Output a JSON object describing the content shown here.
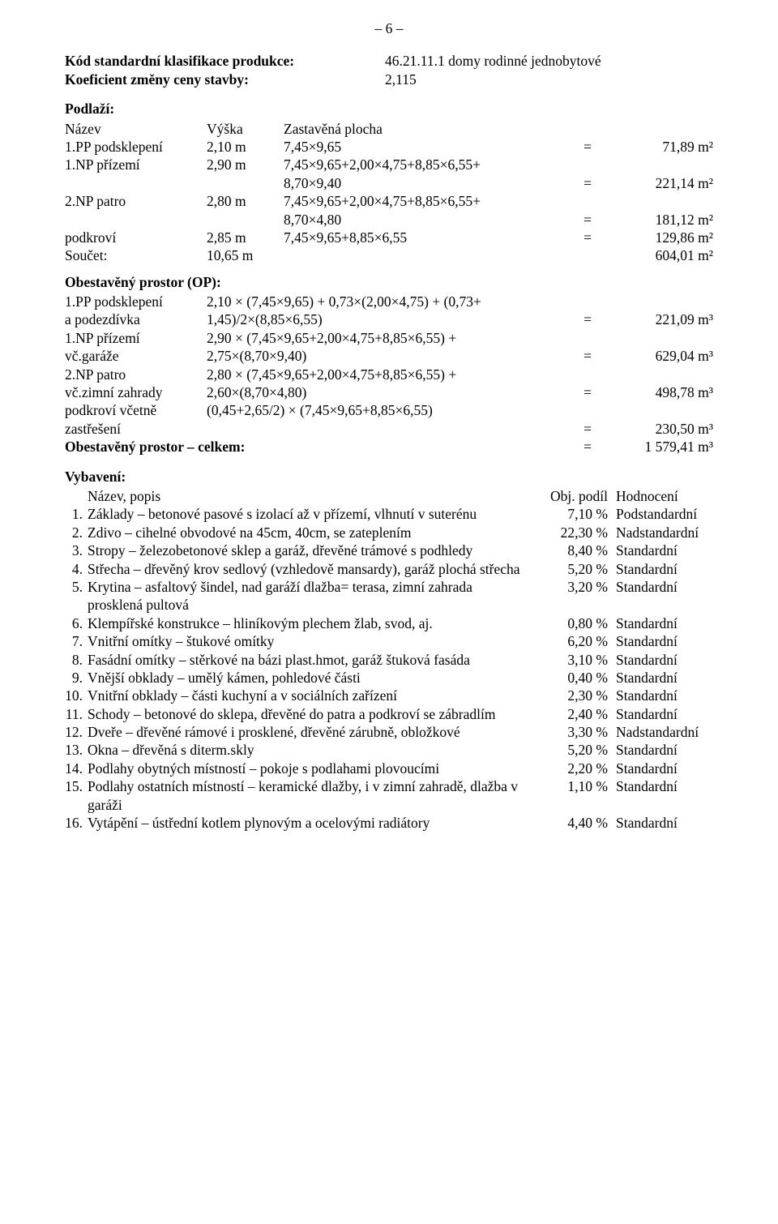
{
  "page_number": "– 6 –",
  "top": {
    "row1_label": "Kód standardní klasifikace produkce:",
    "row1_value": "46.21.11.1    domy rodinné jednobytové",
    "row2_label": "Koeficient změny ceny stavby:",
    "row2_value": "2,115"
  },
  "podlazi": {
    "title": "Podlaží:",
    "head_c1": "Název",
    "head_c2": "Výška",
    "head_c3": "Zastavěná plocha",
    "rows": [
      {
        "c1": "1.PP podsklepení",
        "c2": "2,10 m",
        "c3": "7,45×9,65",
        "c4": "=",
        "c5": "71,89 m²"
      },
      {
        "c1": "1.NP přízemí",
        "c2": "2,90 m",
        "c3": "7,45×9,65+2,00×4,75+8,85×6,55+",
        "c4": "",
        "c5": ""
      },
      {
        "c1": "",
        "c2": "",
        "c3": "8,70×9,40",
        "c4": "=",
        "c5": "221,14 m²"
      },
      {
        "c1": "2.NP patro",
        "c2": "2,80 m",
        "c3": "7,45×9,65+2,00×4,75+8,85×6,55+",
        "c4": "",
        "c5": ""
      },
      {
        "c1": "",
        "c2": "",
        "c3": "8,70×4,80",
        "c4": "=",
        "c5": "181,12 m²"
      },
      {
        "c1": "podkroví",
        "c2": "2,85 m",
        "c3": "7,45×9,65+8,85×6,55",
        "c4": "=",
        "c5": "129,86 m²"
      }
    ],
    "sum_row": {
      "c1": "Součet:",
      "c2": "10,65 m",
      "c3": "",
      "c4": "",
      "c5": "604,01 m²"
    }
  },
  "op": {
    "title": "Obestavěný prostor (OP):",
    "rows": [
      {
        "cL": "1.PP podsklepení",
        "cM": "2,10 × (7,45×9,65) + 0,73×(2,00×4,75) + (0,73+",
        "c4": "",
        "c5": ""
      },
      {
        "cL": "a podezdívka",
        "cM": "1,45)/2×(8,85×6,55)",
        "c4": "=",
        "c5": "221,09 m³"
      },
      {
        "cL": "1.NP přízemí",
        "cM": "2,90 × (7,45×9,65+2,00×4,75+8,85×6,55) +",
        "c4": "",
        "c5": ""
      },
      {
        "cL": "vč.garáže",
        "cM": "2,75×(8,70×9,40)",
        "c4": "=",
        "c5": "629,04 m³"
      },
      {
        "cL": "2.NP patro",
        "cM": "2,80 × (7,45×9,65+2,00×4,75+8,85×6,55) +",
        "c4": "",
        "c5": ""
      },
      {
        "cL": "vč.zimní zahrady",
        "cM": "2,60×(8,70×4,80)",
        "c4": "=",
        "c5": "498,78 m³"
      },
      {
        "cL": "podkroví včetně",
        "cM": "(0,45+2,65/2) × (7,45×9,65+8,85×6,55)",
        "c4": "",
        "c5": ""
      },
      {
        "cL": "zastřešení",
        "cM": "",
        "c4": "=",
        "c5": "230,50 m³"
      }
    ],
    "sum": {
      "cL": "Obestavěný prostor – celkem:",
      "c4": "=",
      "c5": "1 579,41 m³"
    }
  },
  "vyb": {
    "title": "Vybavení:",
    "head_c1": "Název, popis",
    "head_c2": "Obj. podíl",
    "head_c3": "Hodnocení",
    "rows": [
      {
        "n": "1.",
        "d": "Základy – betonové pasové s izolací až v přízemí, vlhnutí v suterénu",
        "p": "7,10 %",
        "r": "Podstandardní"
      },
      {
        "n": "2.",
        "d": "Zdivo – cihelné obvodové na 45cm, 40cm, se zateplením",
        "p": "22,30 %",
        "r": "Nadstandardní"
      },
      {
        "n": "3.",
        "d": "Stropy – železobetonové sklep a garáž, dřevěné trámové s podhledy",
        "p": "8,40 %",
        "r": "Standardní"
      },
      {
        "n": "4.",
        "d": "Střecha – dřevěný krov sedlový (vzhledově mansardy), garáž plochá střecha",
        "p": "5,20 %",
        "r": "Standardní"
      },
      {
        "n": "5.",
        "d": "Krytina – asfaltový šindel, nad garáží dlažba= terasa, zimní zahrada prosklená pultová",
        "p": "3,20 %",
        "r": "Standardní"
      },
      {
        "n": "6.",
        "d": "Klempířské konstrukce – hliníkovým plechem žlab, svod, aj.",
        "p": "0,80 %",
        "r": "Standardní"
      },
      {
        "n": "7.",
        "d": "Vnitřní omítky – štukové omítky",
        "p": "6,20 %",
        "r": "Standardní"
      },
      {
        "n": "8.",
        "d": "Fasádní omítky – stěrkové na bázi plast.hmot, garáž štuková fasáda",
        "p": "3,10 %",
        "r": "Standardní"
      },
      {
        "n": "9.",
        "d": "Vnější obklady – umělý kámen, pohledové části",
        "p": "0,40 %",
        "r": "Standardní"
      },
      {
        "n": "10.",
        "d": "Vnitřní obklady – části kuchyní a v sociálních zařízení",
        "p": "2,30 %",
        "r": "Standardní"
      },
      {
        "n": "11.",
        "d": "Schody – betonové do sklepa, dřevěné do patra a podkroví se zábradlím",
        "p": "2,40 %",
        "r": "Standardní"
      },
      {
        "n": "12.",
        "d": "Dveře – dřevěné rámové i prosklené, dřevěné zárubně, obložkové",
        "p": "3,30 %",
        "r": "Nadstandardní"
      },
      {
        "n": "13.",
        "d": "Okna – dřevěná s diterm.skly",
        "p": "5,20 %",
        "r": "Standardní"
      },
      {
        "n": "14.",
        "d": "Podlahy obytných místností – pokoje s podlahami plovoucími",
        "p": "2,20 %",
        "r": "Standardní"
      },
      {
        "n": "15.",
        "d": "Podlahy ostatních místností – keramické dlažby, i v zimní zahradě, dlažba v garáži",
        "p": "1,10 %",
        "r": "Standardní"
      },
      {
        "n": "16.",
        "d": "Vytápění – ústřední kotlem plynovým a ocelovými radiátory",
        "p": "4,40 %",
        "r": "Standardní"
      }
    ]
  }
}
